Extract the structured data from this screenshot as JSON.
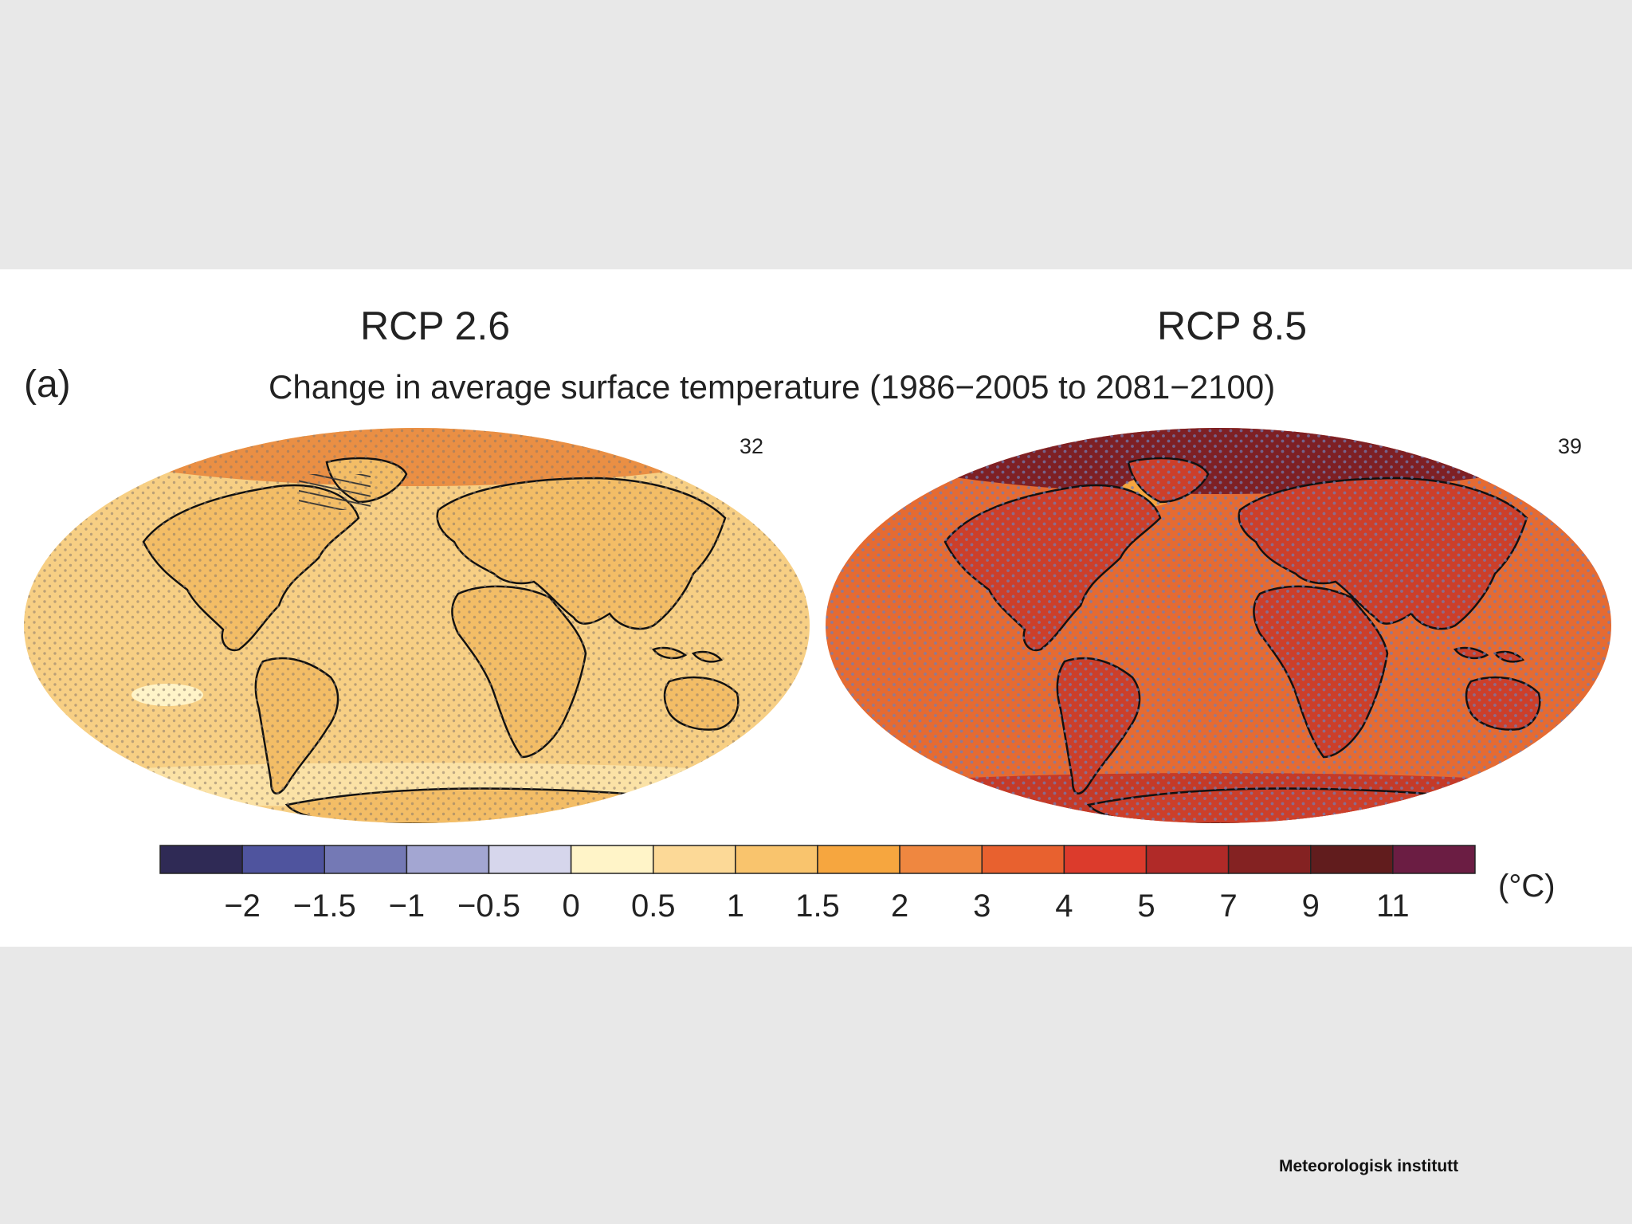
{
  "figure": {
    "panel_label": "(a)",
    "subtitle": "Change in average surface temperature (1986−2005 to 2081−2100)",
    "credit": "Meteorologisk institutt"
  },
  "maps": [
    {
      "title": "RCP 2.6",
      "model_count": "32",
      "base_color": "#f7cf84",
      "land_color": "#f3bd66",
      "arctic_color": "#ea8f44",
      "dot_color": "#8a7a6a"
    },
    {
      "title": "RCP 8.5",
      "model_count": "39",
      "base_color": "#e56b32",
      "land_color": "#cc3f2a",
      "arctic_color": "#7e2024",
      "dot_color": "#6f7fb8"
    }
  ],
  "chart_data": {
    "type": "colorbar",
    "unit": "(°C)",
    "tick_labels": [
      "−2",
      "−1.5",
      "−1",
      "−0.5",
      "0",
      "0.5",
      "1",
      "1.5",
      "2",
      "3",
      "4",
      "5",
      "7",
      "9",
      "11"
    ],
    "bins": [
      {
        "color": "#2f2a55"
      },
      {
        "color": "#4f549e"
      },
      {
        "color": "#7479b5"
      },
      {
        "color": "#a3a6d2"
      },
      {
        "color": "#d6d6ec"
      },
      {
        "color": "#fff4c8"
      },
      {
        "color": "#fcd997"
      },
      {
        "color": "#f9c46d"
      },
      {
        "color": "#f6a63f"
      },
      {
        "color": "#ef8740"
      },
      {
        "color": "#e8612f"
      },
      {
        "color": "#dc3b2c"
      },
      {
        "color": "#b02a28"
      },
      {
        "color": "#842222"
      },
      {
        "color": "#611c1d"
      },
      {
        "color": "#6b1d43"
      }
    ]
  }
}
